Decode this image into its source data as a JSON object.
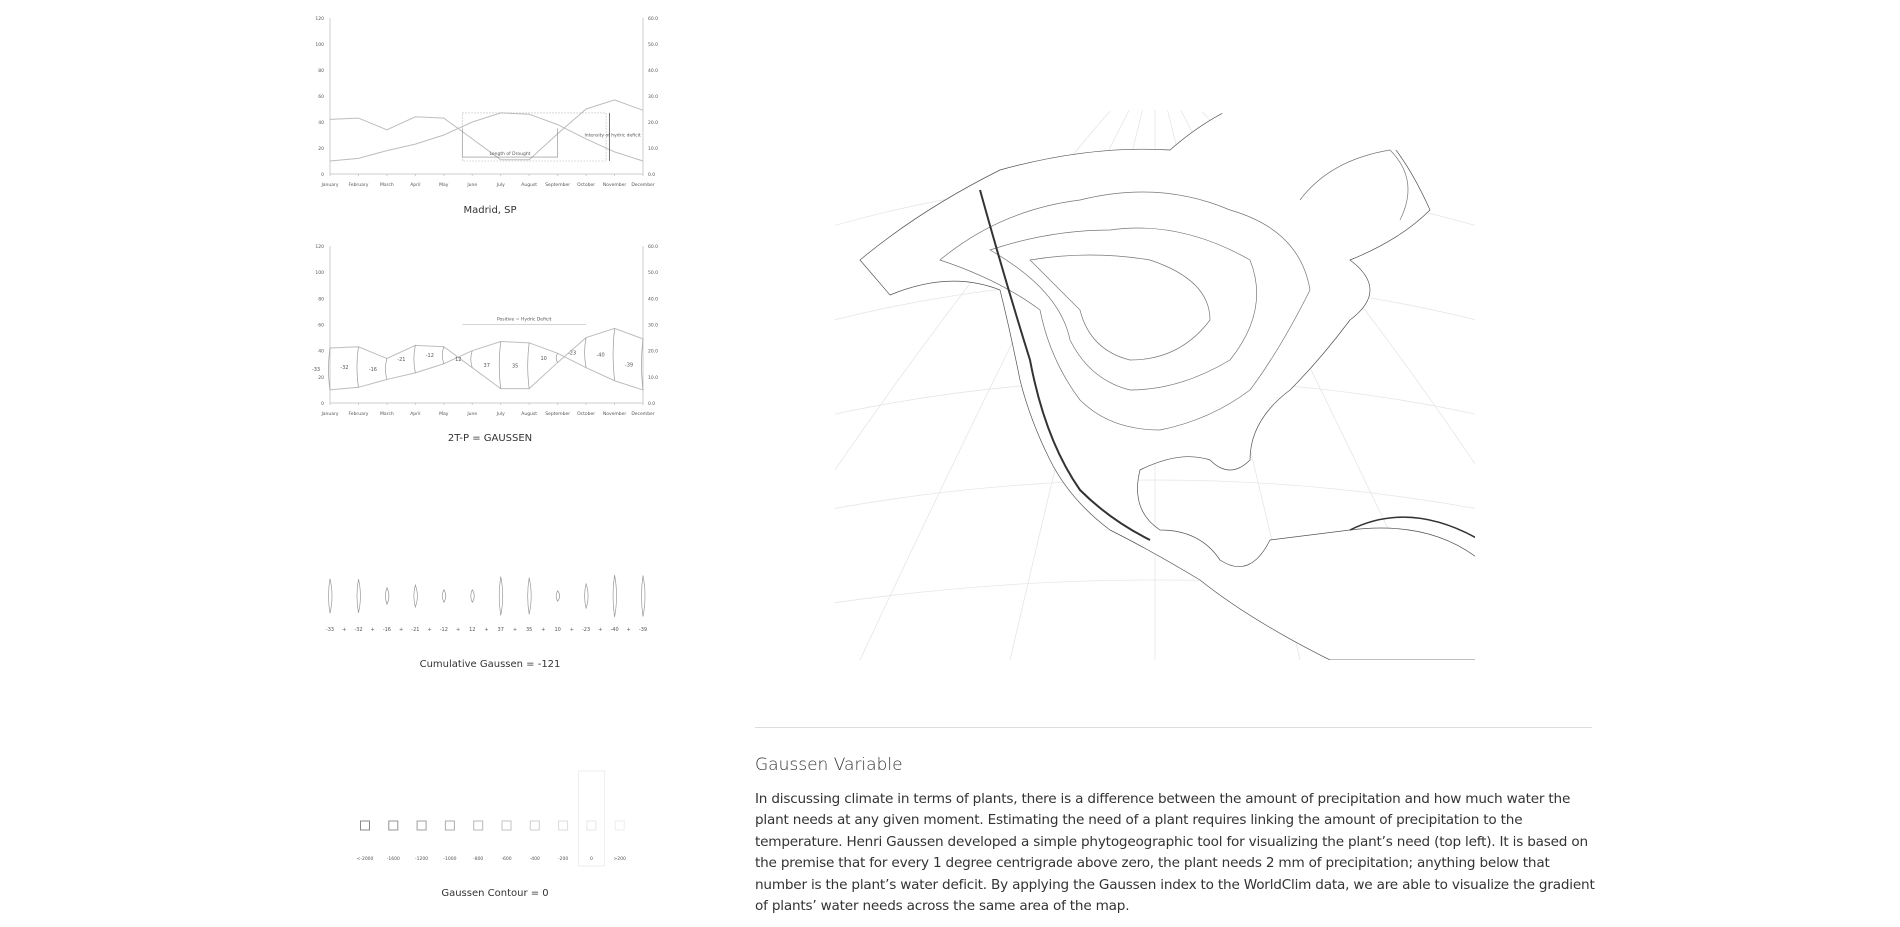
{
  "chart_data": [
    {
      "type": "line",
      "title": "Madrid, SP",
      "categories": [
        "January",
        "February",
        "March",
        "April",
        "May",
        "June",
        "July",
        "August",
        "September",
        "October",
        "November",
        "December"
      ],
      "y_left": {
        "range": [
          0,
          120
        ],
        "ticks": [
          "0",
          "20",
          "40",
          "60",
          "80",
          "100",
          "120"
        ]
      },
      "y_right": {
        "range": [
          0,
          60
        ],
        "ticks": [
          "0.0",
          "10.0",
          "20.0",
          "30.0",
          "40.0",
          "50.0",
          "60.0"
        ]
      },
      "series": [
        {
          "axis": "left",
          "values": [
            42,
            43,
            34,
            44,
            43,
            27,
            11,
            11,
            31,
            50,
            57,
            49
          ]
        },
        {
          "axis": "right",
          "values": [
            5,
            6,
            9,
            11.5,
            15,
            20,
            23.5,
            23,
            19,
            13.5,
            8.5,
            5
          ]
        }
      ],
      "annotations": [
        "Length of Drought",
        "Intensity of hydric deficit"
      ],
      "grid": false
    },
    {
      "type": "line",
      "title": "2T-P = GAUSSEN",
      "categories": [
        "January",
        "February",
        "March",
        "April",
        "May",
        "June",
        "July",
        "August",
        "September",
        "October",
        "November",
        "December"
      ],
      "y_left": {
        "range": [
          0,
          120
        ],
        "ticks": [
          "0",
          "20",
          "40",
          "60",
          "80",
          "100",
          "120"
        ]
      },
      "y_right": {
        "range": [
          0,
          60
        ],
        "ticks": [
          "0.0",
          "10.0",
          "20.0",
          "30.0",
          "40.0",
          "50.0",
          "60.0"
        ]
      },
      "gaussen_labels": [
        "-33",
        "-32",
        "-16",
        "-21",
        "-12",
        "12",
        "37",
        "35",
        "10",
        "-23",
        "-40",
        "-39"
      ],
      "annotations": [
        "Positive = Hydric Deficit"
      ],
      "grid": false
    },
    {
      "type": "bar",
      "title": "Cumulative Gaussen = -121",
      "values": [
        -33,
        -32,
        -16,
        -21,
        -12,
        12,
        37,
        35,
        10,
        -23,
        -40,
        -39
      ],
      "operator": "+"
    },
    {
      "type": "legend",
      "title": "Gaussen Contour = 0",
      "categories": [
        "<-2000",
        "-1600",
        "-1200",
        "-1000",
        "-800",
        "-600",
        "-400",
        "-200",
        "0",
        ">200"
      ],
      "highlighted": "0"
    }
  ],
  "article": {
    "heading": "Gaussen Variable",
    "body": "In discussing climate in terms of plants, there is a difference between the amount of precipitation and how much water the plant needs at any given moment. Estimating the need of a plant requires linking the amount of precipitation to the temperature. Henri Gaussen developed a simple phytogeographic tool for visualizing the plant’s need (top left). It is based on the premise that for every 1 degree centrigrade above zero, the plant needs 2 mm of precipitation; anything below that number is the plant’s water deficit. By applying the Gaussen index to the WorldClim data, we are able to visualize the gradient of plants’ water needs across the same area of the map."
  },
  "colors": {
    "line": "#bdbdbd",
    "axis": "#cccccc",
    "text": "#333333"
  }
}
